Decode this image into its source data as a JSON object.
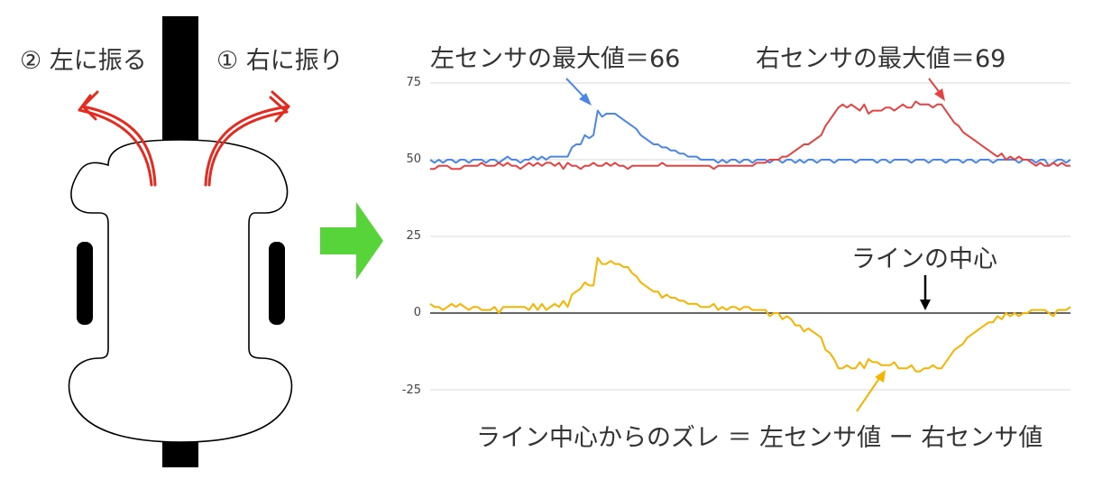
{
  "robot": {
    "label_left": "② 左に振る",
    "label_right": "① 右に振り"
  },
  "chart": {
    "annotations": {
      "left_max": "左センサの最大値＝66",
      "right_max": "右センサの最大値＝69",
      "line_center": "ラインの中心",
      "deviation": "ライン中心からのズレ ＝ 左センサ値 ー 右センサ値"
    },
    "colors": {
      "left": "#4a86e8",
      "right": "#e84141",
      "diff": "#f4b400",
      "arrow": "#57d43a"
    }
  },
  "chart_data": {
    "type": "line",
    "ylim": [
      -30,
      80
    ],
    "yticks": [
      75,
      50,
      25,
      0,
      -25
    ],
    "ytick_labels": [
      "75",
      "50",
      "25",
      "0",
      "-25"
    ],
    "grid": true,
    "series": [
      {
        "values": [
          50,
          49,
          50,
          49,
          50,
          50,
          49,
          50,
          50,
          49,
          50,
          50,
          50,
          49,
          50,
          50,
          49,
          50,
          51,
          50,
          50,
          49,
          50,
          50,
          51,
          50,
          51,
          50,
          51,
          51,
          51,
          51,
          51,
          54,
          55,
          55,
          58,
          57,
          58,
          66,
          64,
          65,
          65,
          65,
          64,
          63,
          62,
          61,
          60,
          58,
          57,
          56,
          55,
          55,
          54,
          54,
          53,
          53,
          52,
          52,
          51,
          51,
          51,
          50,
          50,
          50,
          50,
          49,
          50,
          49,
          50,
          50,
          49,
          50,
          50,
          49,
          50,
          50,
          50,
          49,
          50,
          50,
          49,
          50,
          50,
          49,
          50,
          49,
          50,
          50,
          49,
          50,
          50,
          50,
          49,
          50,
          50,
          50,
          50,
          49,
          50,
          50,
          50,
          50,
          49,
          50,
          50,
          49,
          50,
          50,
          50,
          50,
          49,
          50,
          50,
          50,
          49,
          50,
          50,
          50,
          49,
          50,
          50,
          50,
          49,
          50,
          50,
          49,
          50,
          50,
          50,
          49,
          50,
          50,
          50,
          50,
          50,
          49,
          50,
          50,
          50,
          49,
          50,
          50,
          48,
          49,
          50,
          50,
          49,
          50
        ]
      },
      {
        "values": [
          47,
          47,
          48,
          48,
          48,
          47,
          47,
          47,
          48,
          48,
          48,
          48,
          49,
          48,
          48,
          48,
          49,
          48,
          49,
          48,
          48,
          47,
          48,
          49,
          48,
          49,
          48,
          49,
          49,
          48,
          49,
          47,
          49,
          48,
          48,
          47,
          48,
          48,
          49,
          48,
          48,
          49,
          48,
          49,
          48,
          48,
          47,
          48,
          48,
          48,
          48,
          48,
          48,
          48,
          49,
          48,
          48,
          48,
          48,
          48,
          48,
          48,
          48,
          48,
          48,
          48,
          47,
          48,
          48,
          48,
          48,
          48,
          48,
          48,
          48,
          48,
          49,
          49,
          49,
          50,
          50,
          50,
          51,
          51,
          52,
          53,
          54,
          55,
          55,
          56,
          57,
          58,
          61,
          63,
          65,
          67,
          68,
          67,
          68,
          67,
          66,
          68,
          65,
          66,
          66,
          66,
          67,
          67,
          66,
          67,
          68,
          67,
          67,
          69,
          68,
          68,
          68,
          67,
          68,
          68,
          66,
          64,
          62,
          61,
          59,
          58,
          57,
          56,
          55,
          54,
          53,
          52,
          51,
          52,
          50,
          51,
          50,
          51,
          50,
          50,
          49,
          48,
          49,
          48,
          48,
          49,
          48,
          49,
          48,
          48
        ]
      },
      {
        "values": [
          3,
          2,
          2,
          1,
          2,
          3,
          2,
          3,
          2,
          1,
          2,
          2,
          1,
          1,
          1,
          2,
          0,
          2,
          2,
          2,
          2,
          2,
          2,
          1,
          3,
          1,
          3,
          1,
          2,
          3,
          2,
          4,
          2,
          6,
          7,
          8,
          10,
          9,
          9,
          18,
          16,
          16,
          17,
          16,
          16,
          15,
          15,
          13,
          12,
          10,
          9,
          8,
          7,
          7,
          5,
          6,
          5,
          5,
          4,
          4,
          3,
          3,
          3,
          2,
          2,
          2,
          3,
          1,
          2,
          1,
          2,
          2,
          1,
          2,
          2,
          1,
          1,
          1,
          1,
          -1,
          0,
          0,
          -2,
          -1,
          -2,
          -4,
          -4,
          -6,
          -5,
          -6,
          -7,
          -8,
          -12,
          -13,
          -15,
          -18,
          -18,
          -17,
          -18,
          -18,
          -16,
          -18,
          -15,
          -16,
          -16,
          -17,
          -17,
          -17,
          -16,
          -18,
          -18,
          -18,
          -17,
          -19,
          -19,
          -18,
          -18,
          -17,
          -18,
          -18,
          -16,
          -14,
          -12,
          -11,
          -10,
          -8,
          -7,
          -6,
          -5,
          -4,
          -3,
          -3,
          -1,
          -2,
          0,
          -1,
          0,
          -1,
          0,
          0,
          1,
          1,
          1,
          1,
          0,
          -1,
          1,
          1,
          1,
          2
        ]
      }
    ]
  }
}
